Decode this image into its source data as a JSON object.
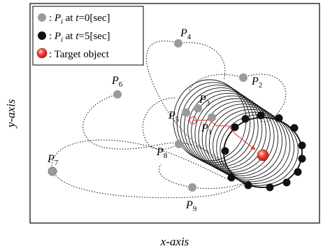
{
  "axes": {
    "x_label": "x-axis",
    "y_label": "y-axis"
  },
  "legend": {
    "items": [
      {
        "symbol": "gray-dot",
        "prefix": ": ",
        "var": "P",
        "sub": "i",
        "mid": " at ",
        "t": "t",
        "suffix": "=0[sec]"
      },
      {
        "symbol": "black-dot",
        "prefix": ": ",
        "var": "P",
        "sub": "i",
        "mid": " at ",
        "t": "t",
        "suffix": "=5[sec]"
      },
      {
        "symbol": "target",
        "text": ": Target object"
      }
    ]
  },
  "points": {
    "P1": {
      "var": "P",
      "sub": "1"
    },
    "P2": {
      "var": "P",
      "sub": "2"
    },
    "P3": {
      "var": "P",
      "sub": "3"
    },
    "P4": {
      "var": "P",
      "sub": "4"
    },
    "P5": {
      "var": "P",
      "sub": "5"
    },
    "P6": {
      "var": "P",
      "sub": "6"
    },
    "P7": {
      "var": "P",
      "sub": "7"
    },
    "P8": {
      "var": "P",
      "sub": "8"
    },
    "P9": {
      "var": "P",
      "sub": "9"
    }
  },
  "colors": {
    "initial_dot": "#9a9a9a",
    "final_dot": "#111111",
    "target": "#e8302a",
    "trajectory": "#111111",
    "target_path": "#e8302a"
  }
}
